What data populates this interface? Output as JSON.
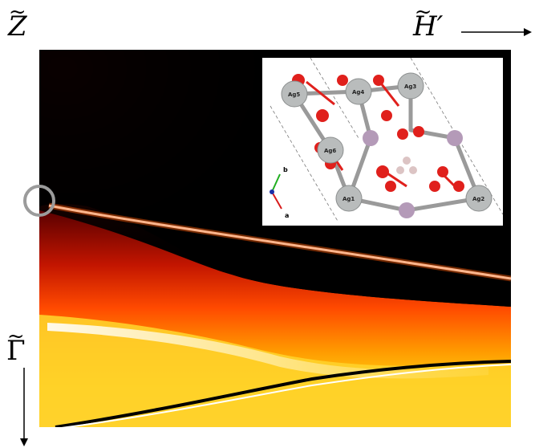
{
  "labels": {
    "z_tilde": "Z",
    "h_prime_tilde": "H′",
    "gamma_tilde": "Γ"
  },
  "inset": {
    "atoms": [
      "Ag5",
      "Ag4",
      "Ag3",
      "Ag6",
      "Ag1",
      "Ag2"
    ],
    "axes": [
      "b",
      "a"
    ]
  },
  "colors": {
    "background_dark": "#000000",
    "band_low": "#8b0000",
    "band_mid": "#ff4000",
    "band_high": "#ffd200",
    "band_peak": "#ffffff",
    "oxygen": "#e0201c",
    "silver": "#b9bcbc",
    "phosphorus": "#b49ab8",
    "hydrogen": "#d9c0c0",
    "highlight_circle": "#9b9b9b"
  }
}
